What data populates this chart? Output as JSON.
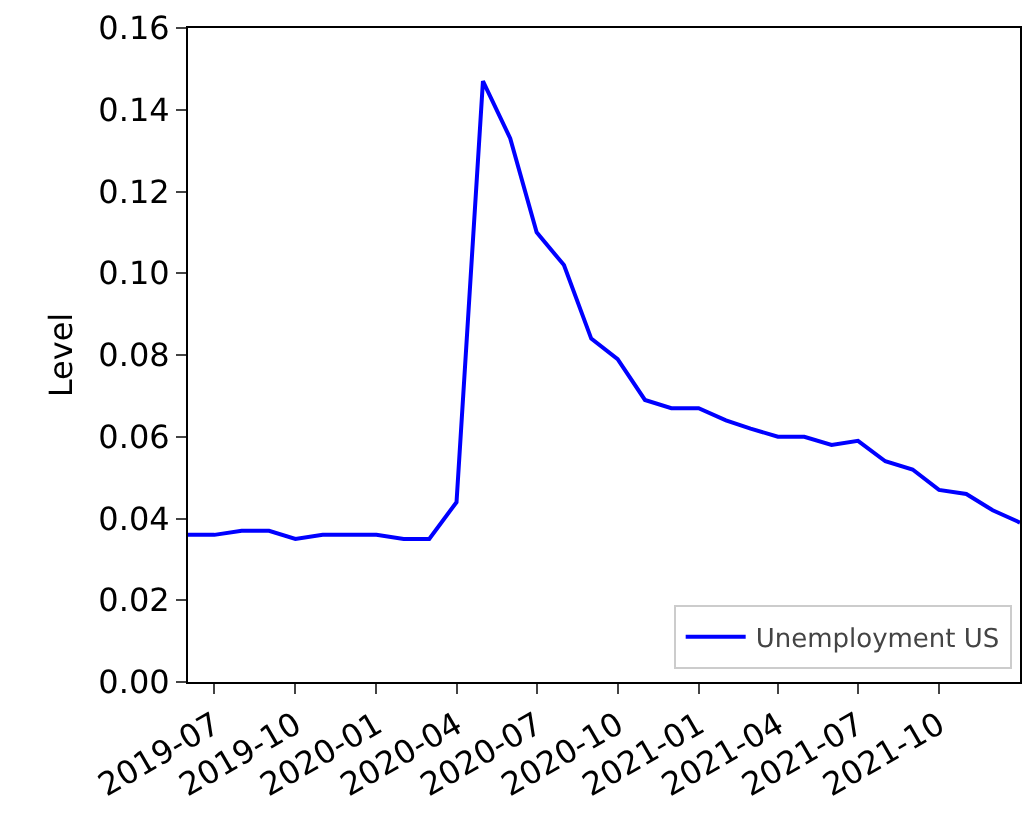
{
  "chart_data": {
    "type": "line",
    "ylabel": "Level",
    "x": [
      "2019-06",
      "2019-07",
      "2019-08",
      "2019-09",
      "2019-10",
      "2019-11",
      "2019-12",
      "2020-01",
      "2020-02",
      "2020-03",
      "2020-04",
      "2020-05",
      "2020-06",
      "2020-07",
      "2020-08",
      "2020-09",
      "2020-10",
      "2020-11",
      "2020-12",
      "2021-01",
      "2021-02",
      "2021-03",
      "2021-04",
      "2021-05",
      "2021-06",
      "2021-07",
      "2021-08",
      "2021-09",
      "2021-10",
      "2021-11",
      "2021-12",
      "2022-01"
    ],
    "series": [
      {
        "name": "Unemployment US",
        "color": "#0000ff",
        "values": [
          0.036,
          0.036,
          0.037,
          0.037,
          0.035,
          0.036,
          0.036,
          0.036,
          0.035,
          0.035,
          0.044,
          0.147,
          0.133,
          0.11,
          0.102,
          0.084,
          0.079,
          0.069,
          0.067,
          0.067,
          0.064,
          0.062,
          0.06,
          0.06,
          0.058,
          0.059,
          0.054,
          0.052,
          0.047,
          0.046,
          0.042,
          0.039
        ]
      }
    ],
    "xlim": [
      "2019-06",
      "2022-01"
    ],
    "xticks": [
      {
        "value": "2019-07",
        "label": "2019-07"
      },
      {
        "value": "2019-10",
        "label": "2019-10"
      },
      {
        "value": "2020-01",
        "label": "2020-01"
      },
      {
        "value": "2020-04",
        "label": "2020-04"
      },
      {
        "value": "2020-07",
        "label": "2020-07"
      },
      {
        "value": "2020-10",
        "label": "2020-10"
      },
      {
        "value": "2021-01",
        "label": "2021-01"
      },
      {
        "value": "2021-04",
        "label": "2021-04"
      },
      {
        "value": "2021-07",
        "label": "2021-07"
      },
      {
        "value": "2021-10",
        "label": "2021-10"
      }
    ],
    "ylim": [
      0,
      0.16
    ],
    "yticks": [
      {
        "value": 0,
        "label": "0.00"
      },
      {
        "value": 0.02,
        "label": "0.02"
      },
      {
        "value": 0.04,
        "label": "0.04"
      },
      {
        "value": 0.06,
        "label": "0.06"
      },
      {
        "value": 0.08,
        "label": "0.08"
      },
      {
        "value": 0.1,
        "label": "0.10"
      },
      {
        "value": 0.12,
        "label": "0.12"
      },
      {
        "value": 0.14,
        "label": "0.14"
      },
      {
        "value": 0.16,
        "label": "0.16"
      }
    ],
    "legend": "bottom right",
    "grid": false,
    "line_style": "solid",
    "marker": "none"
  }
}
